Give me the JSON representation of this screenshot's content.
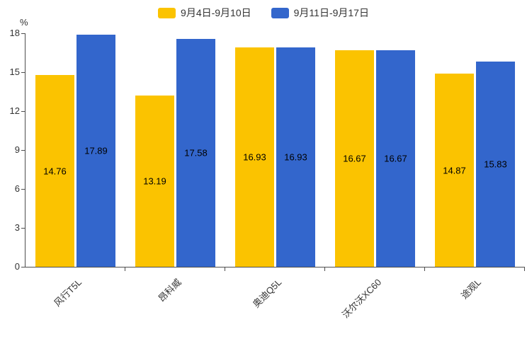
{
  "chart_data": {
    "type": "bar",
    "title": "",
    "categories": [
      "风行T5L",
      "昂科威",
      "奥迪Q5L",
      "沃尔沃XC60",
      "途观L"
    ],
    "series": [
      {
        "name": "9月4日-9月10日",
        "color": "#FBC300",
        "values": [
          14.76,
          13.19,
          16.93,
          16.67,
          14.87
        ]
      },
      {
        "name": "9月11日-9月17日",
        "color": "#3366CC",
        "values": [
          17.89,
          17.58,
          16.93,
          16.67,
          15.83
        ]
      }
    ],
    "data_labels": [
      [
        "14.76",
        "13.19",
        "16.93",
        "16.67",
        "14.87"
      ],
      [
        "17.89",
        "17.58",
        "16.93",
        "16.67",
        "15.83"
      ]
    ],
    "xlabel": "",
    "ylabel": "%",
    "ylim": [
      0,
      18
    ],
    "yticks": [
      "0",
      "3",
      "6",
      "9",
      "12",
      "15",
      "18"
    ],
    "grid": false,
    "legend_position": "top"
  },
  "colors": {
    "axis": "#4d4d4d",
    "tick_text": "#333333",
    "bar_label_text": "#000000",
    "background": "#ffffff"
  }
}
